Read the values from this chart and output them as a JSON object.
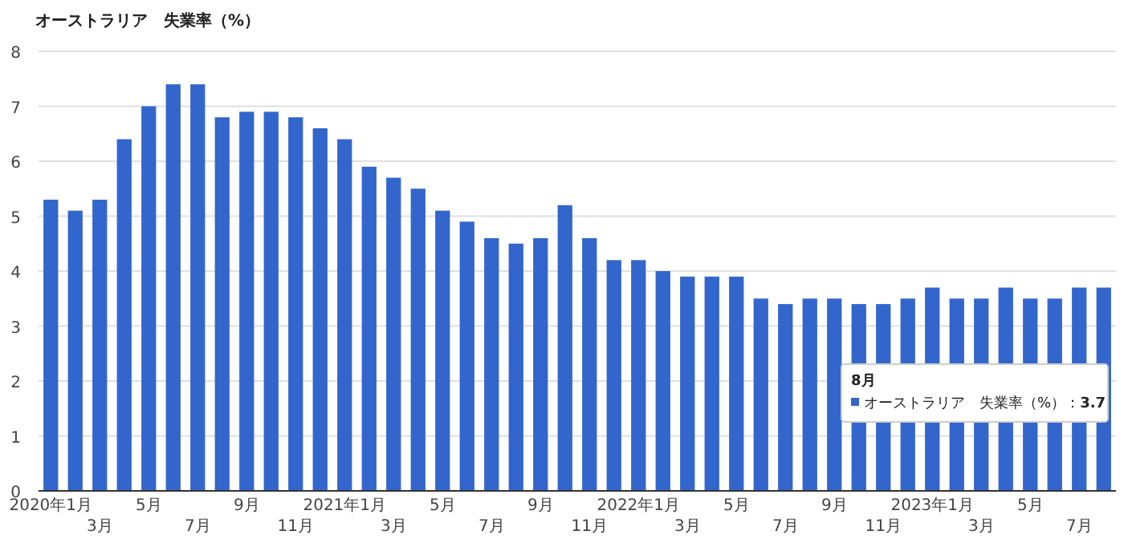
{
  "chart_data": {
    "type": "bar",
    "title": "オーストラリア　失業率（%）",
    "categories": [
      "2020年1月",
      null,
      "3月",
      null,
      "5月",
      null,
      "7月",
      null,
      "9月",
      null,
      "11月",
      null,
      "2021年1月",
      null,
      "3月",
      null,
      "5月",
      null,
      "7月",
      null,
      "9月",
      null,
      "11月",
      null,
      "2022年1月",
      null,
      "3月",
      null,
      "5月",
      null,
      "7月",
      null,
      "9月",
      null,
      "11月",
      null,
      "2023年1月",
      null,
      "3月",
      null,
      "5月",
      null,
      "7月",
      null
    ],
    "values": [
      5.3,
      5.1,
      5.3,
      6.4,
      7.0,
      7.4,
      7.4,
      6.8,
      6.9,
      6.9,
      6.8,
      6.6,
      6.4,
      5.9,
      5.7,
      5.5,
      5.1,
      4.9,
      4.6,
      4.5,
      4.6,
      5.2,
      4.6,
      4.2,
      4.2,
      4.0,
      3.9,
      3.9,
      3.9,
      3.5,
      3.4,
      3.5,
      3.5,
      3.4,
      3.4,
      3.5,
      3.7,
      3.5,
      3.5,
      3.7,
      3.5,
      3.5,
      3.7,
      3.7
    ],
    "color": "#3366cc",
    "ylim": [
      0,
      8
    ],
    "yticks": [
      0,
      1,
      2,
      3,
      4,
      5,
      6,
      7,
      8
    ],
    "grid": "y",
    "annotations": [
      "8月",
      "オーストラリア　失業率（%）：**3.7**"
    ]
  }
}
